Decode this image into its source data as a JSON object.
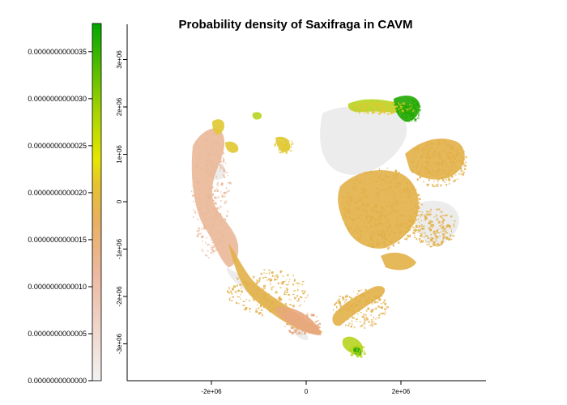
{
  "chart_data": {
    "type": "heatmap",
    "title": "Probability density of Saxifraga in CAVM",
    "xlabel": "",
    "ylabel": "",
    "x_ticks": [
      "-2e+06",
      "0",
      "2e+06"
    ],
    "x_tick_values": [
      -2000000,
      0,
      2000000
    ],
    "y_ticks": [
      "-3e+06",
      "-2e+06",
      "-1e+06",
      "0",
      "1e+06",
      "2e+06",
      "3e+06"
    ],
    "y_tick_values": [
      -3000000,
      -2000000,
      -1000000,
      0,
      1000000,
      2000000,
      3000000
    ],
    "xlim": [
      -3800000,
      3800000
    ],
    "ylim": [
      -3800000,
      3800000
    ],
    "legend": {
      "placement": "left",
      "min": 0,
      "max": 3.8e-15,
      "labels": [
        "0.0000000000000",
        "0.0000000000005",
        "0.0000000000010",
        "0.0000000000015",
        "0.0000000000020",
        "0.0000000000025",
        "0.0000000000030",
        "0.0000000000035"
      ],
      "label_values": [
        0,
        5e-16,
        1e-15,
        1.5e-15,
        2e-15,
        2.5e-15,
        3e-15,
        3.5e-15
      ],
      "colors": [
        "#f2f2f2",
        "#ecb176",
        "#e6e600",
        "#00a600"
      ]
    },
    "nodata_color": "#f0f0f0"
  }
}
